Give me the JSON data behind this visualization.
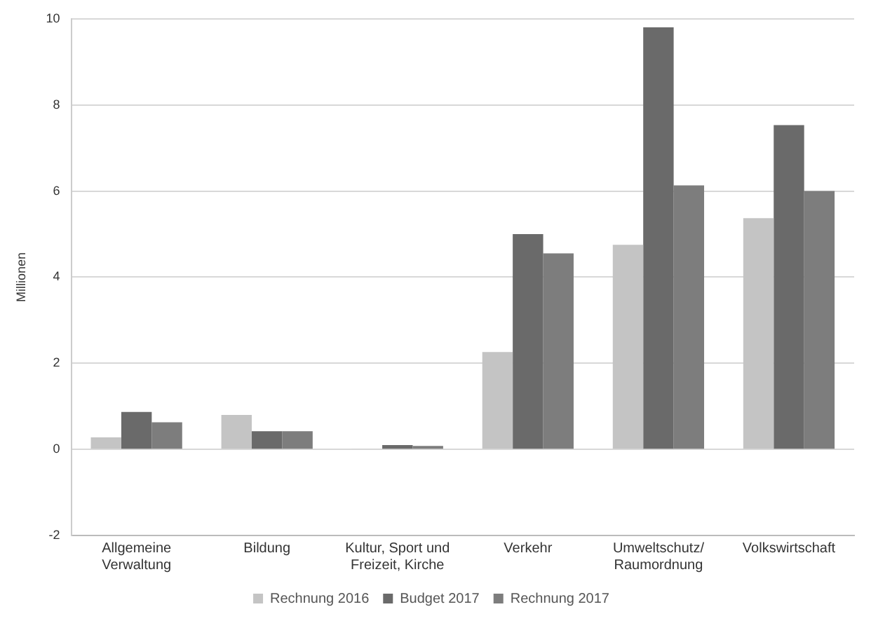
{
  "chart_data": {
    "type": "bar",
    "ylabel": "Millionen",
    "categories": [
      "Allgemeine Verwaltung",
      "Bildung",
      "Kultur, Sport und Freizeit, Kirche",
      "Verkehr",
      "Umweltschutz/ Raumordnung",
      "Volkswirtschaft"
    ],
    "series": [
      {
        "name": "Rechnung 2016",
        "color": "#c4c4c4",
        "values": [
          0.28,
          0.8,
          0.02,
          2.26,
          4.75,
          5.37
        ]
      },
      {
        "name": "Budget 2017",
        "color": "#6a6a6a",
        "values": [
          0.87,
          0.42,
          0.1,
          5.0,
          9.8,
          7.53
        ]
      },
      {
        "name": "Rechnung 2017",
        "color": "#7d7d7d",
        "values": [
          0.63,
          0.42,
          0.08,
          4.55,
          6.13,
          6.0
        ]
      }
    ],
    "ylim": [
      -2,
      10
    ],
    "yticks": [
      -2,
      0,
      2,
      4,
      6,
      8,
      10
    ],
    "grid": "y",
    "legend": "bottom"
  }
}
